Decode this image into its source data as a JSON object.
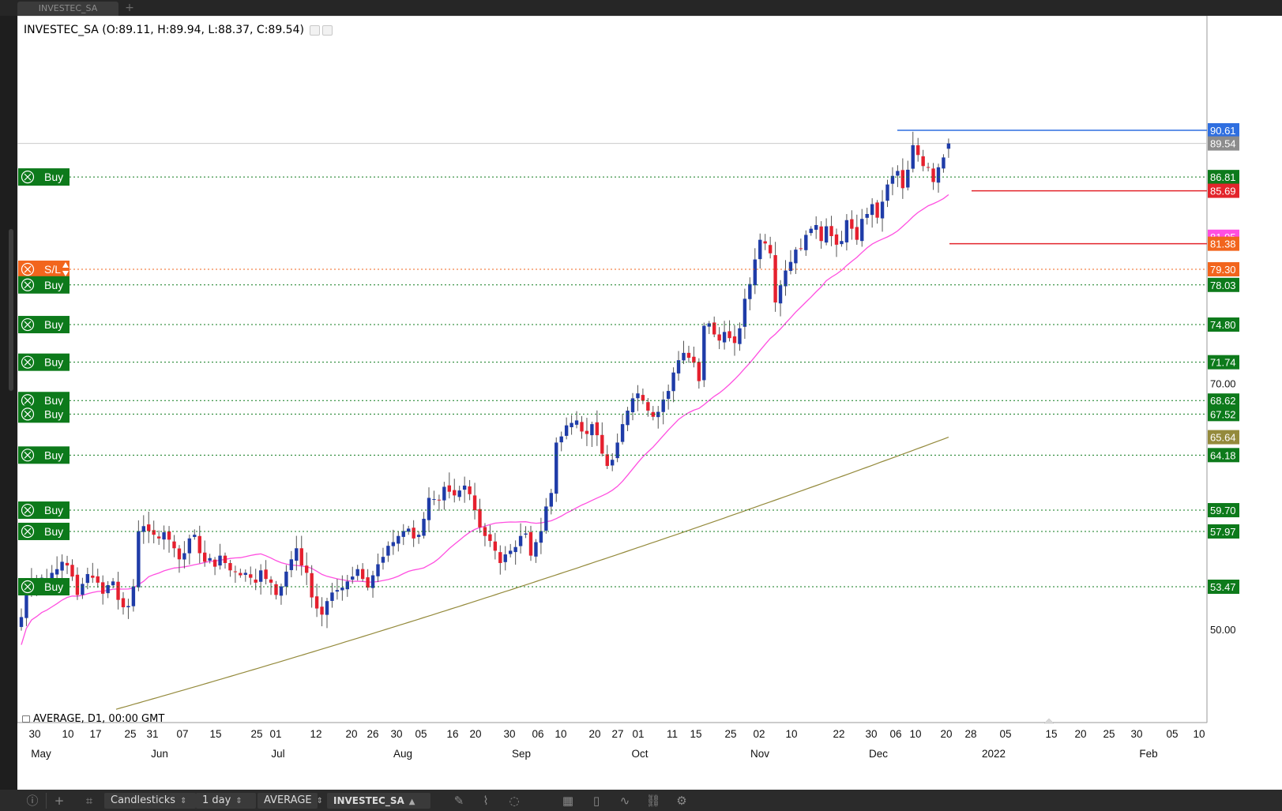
{
  "window": {
    "tab_title": "INVESTEC_SA",
    "tab_add": "+"
  },
  "legend": {
    "symbol": "INVESTEC_SA",
    "ohlc_text": "(O:89.11, H:89.94, L:88.37, C:89.54)",
    "open": 89.11,
    "high": 89.94,
    "low": 88.37,
    "close": 89.54
  },
  "indicator_label": "AVERAGE, D1, 00:00 GMT",
  "colors": {
    "bull": "#1f3ca8",
    "bear": "#e5202e",
    "wick": "#555555",
    "ma_fast": "#ff4fe0",
    "ma_slow": "#948a3c",
    "order_green": "#0d7a1b",
    "sl_orange": "#f2651d",
    "hline_blue": "#2f6fe0",
    "hline_red": "#e3242b"
  },
  "price_axis": {
    "plain_labels": [
      "70.00",
      "50.00"
    ],
    "tags": [
      {
        "value": "90.61",
        "color": "#2f6fe0"
      },
      {
        "value": "89.54",
        "color": "#8c8c8c"
      },
      {
        "value": "86.81",
        "color": "#0d7a1b"
      },
      {
        "value": "85.69",
        "color": "#e3242b"
      },
      {
        "value": "81.95",
        "color": "#ff4fe0"
      },
      {
        "value": "81.38",
        "color": "#f2651d"
      },
      {
        "value": "79.30",
        "color": "#f2651d"
      },
      {
        "value": "78.03",
        "color": "#0d7a1b"
      },
      {
        "value": "74.80",
        "color": "#0d7a1b"
      },
      {
        "value": "71.74",
        "color": "#0d7a1b"
      },
      {
        "value": "68.62",
        "color": "#0d7a1b"
      },
      {
        "value": "67.52",
        "color": "#0d7a1b"
      },
      {
        "value": "65.64",
        "color": "#948a3c"
      },
      {
        "value": "64.18",
        "color": "#0d7a1b"
      },
      {
        "value": "59.70",
        "color": "#0d7a1b"
      },
      {
        "value": "57.97",
        "color": "#0d7a1b"
      },
      {
        "value": "53.47",
        "color": "#0d7a1b"
      }
    ]
  },
  "orders": [
    {
      "type": "Buy",
      "price": 86.81
    },
    {
      "type": "S/L",
      "price": 79.3
    },
    {
      "type": "Buy",
      "price": 78.03
    },
    {
      "type": "Buy",
      "price": 74.8
    },
    {
      "type": "Buy",
      "price": 71.74
    },
    {
      "type": "Buy",
      "price": 68.62
    },
    {
      "type": "Buy",
      "price": 67.52
    },
    {
      "type": "Buy",
      "price": 64.18
    },
    {
      "type": "Buy",
      "price": 59.7
    },
    {
      "type": "Buy",
      "price": 57.97
    },
    {
      "type": "Buy",
      "price": 53.47
    }
  ],
  "time_axis": {
    "days": [
      "30",
      "10",
      "17",
      "25",
      "31",
      "07",
      "15",
      "25",
      "01",
      "12",
      "20",
      "26",
      "30",
      "05",
      "16",
      "20",
      "30",
      "06",
      "10",
      "20",
      "27",
      "01",
      "11",
      "15",
      "25",
      "02",
      "10",
      "22",
      "30",
      "06",
      "10",
      "20",
      "28",
      "05",
      "15",
      "20",
      "25",
      "30",
      "05",
      "10"
    ],
    "months": [
      "May",
      "Jun",
      "Jul",
      "Aug",
      "Sep",
      "Oct",
      "Nov",
      "Dec",
      "2022",
      "Feb"
    ]
  },
  "toolbar": {
    "chart_type": "Candlesticks",
    "timeframe": "1 day",
    "indicator": "AVERAGE",
    "symbol": "INVESTEC_SA"
  },
  "chart_data": {
    "type": "candlestick",
    "symbol": "INVESTEC_SA",
    "timeframe": "D1",
    "ylim": [
      46.0,
      93.0
    ],
    "closes": [
      51.0,
      53.5,
      54.0,
      53.6,
      54.2,
      53.9,
      54.6,
      54.9,
      55.5,
      55.2,
      54.3,
      52.8,
      53.7,
      54.5,
      54.2,
      53.8,
      52.9,
      53.6,
      53.9,
      52.4,
      51.8,
      51.9,
      53.5,
      58.0,
      58.4,
      58.0,
      57.7,
      57.4,
      57.9,
      57.3,
      56.6,
      55.7,
      56.2,
      57.4,
      57.7,
      56.2,
      55.5,
      55.8,
      55.1,
      56.0,
      55.4,
      54.8,
      54.7,
      54.4,
      54.6,
      54.2,
      53.8,
      54.8,
      54.1,
      53.8,
      52.8,
      53.5,
      54.7,
      55.7,
      56.6,
      55.2,
      54.6,
      52.6,
      51.7,
      51.2,
      52.3,
      53.0,
      53.2,
      53.4,
      53.9,
      54.3,
      54.9,
      54.1,
      53.4,
      54.4,
      55.3,
      55.9,
      56.8,
      57.1,
      57.6,
      58.0,
      58.2,
      57.4,
      57.7,
      59.0,
      60.7,
      60.6,
      60.5,
      61.6,
      61.2,
      60.9,
      61.3,
      61.7,
      61.0,
      59.7,
      58.3,
      57.6,
      57.2,
      56.4,
      55.4,
      56.1,
      56.4,
      56.7,
      57.6,
      57.8,
      56.0,
      57.1,
      58.0,
      60.0,
      61.1,
      65.2,
      65.7,
      66.6,
      66.8,
      67.0,
      66.1,
      65.9,
      66.7,
      65.8,
      64.3,
      63.3,
      63.8,
      65.2,
      66.7,
      67.8,
      68.8,
      69.2,
      68.6,
      67.8,
      67.3,
      67.7,
      68.7,
      69.4,
      70.9,
      71.9,
      72.5,
      72.1,
      71.7,
      70.2,
      74.7,
      74.9,
      74.0,
      73.5,
      74.2,
      73.7,
      73.3,
      74.5,
      76.9,
      78.1,
      80.1,
      81.7,
      81.4,
      80.6,
      76.6,
      78.0,
      79.2,
      79.9,
      80.9,
      81.0,
      82.1,
      82.6,
      82.9,
      81.6,
      82.8,
      82.0,
      81.3,
      81.6,
      83.3,
      82.6,
      81.7,
      83.4,
      83.8,
      84.6,
      83.5,
      84.8,
      86.2,
      86.9,
      87.3,
      85.9,
      87.4,
      89.4,
      88.6,
      87.7,
      87.6,
      86.4,
      87.6,
      88.4,
      89.54
    ]
  }
}
